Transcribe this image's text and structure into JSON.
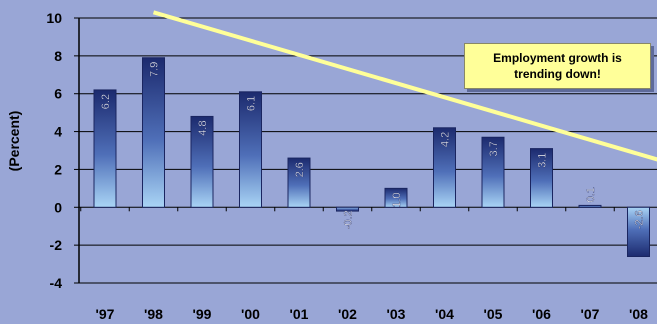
{
  "chart_data": {
    "type": "bar",
    "title": "",
    "xlabel": "",
    "ylabel": "(Percent)",
    "categories": [
      "'97",
      "'98",
      "'99",
      "'00",
      "'01",
      "'02",
      "'03",
      "'04",
      "'05",
      "'06",
      "'07",
      "'08"
    ],
    "values": [
      6.2,
      7.9,
      4.8,
      6.1,
      2.6,
      -0.2,
      1.0,
      4.2,
      3.7,
      3.1,
      0.1,
      -2.6
    ],
    "value_labels": [
      "6.2",
      "7.9",
      "4.8",
      "6.1",
      "2.6",
      "-0.2",
      "1.0",
      "4.2",
      "3.7",
      "3.1",
      "0.1",
      "-2.6"
    ],
    "ylim": [
      -4,
      10
    ],
    "yticks": [
      -4,
      -2,
      0,
      2,
      4,
      6,
      8,
      10
    ],
    "grid": true,
    "trend_line": {
      "start": {
        "x": "'98",
        "y": 10.3
      },
      "end": {
        "x": "'08",
        "y": 1.9
      },
      "color": "#FFFF99"
    },
    "annotation": "Employment growth is\ntrending down!",
    "colors": {
      "background": "#99A6D6",
      "bar_top": "#1C2A6E",
      "bar_bottom": "#A9D4F5",
      "gridline": "#000000",
      "trend": "#FFFF99"
    }
  }
}
